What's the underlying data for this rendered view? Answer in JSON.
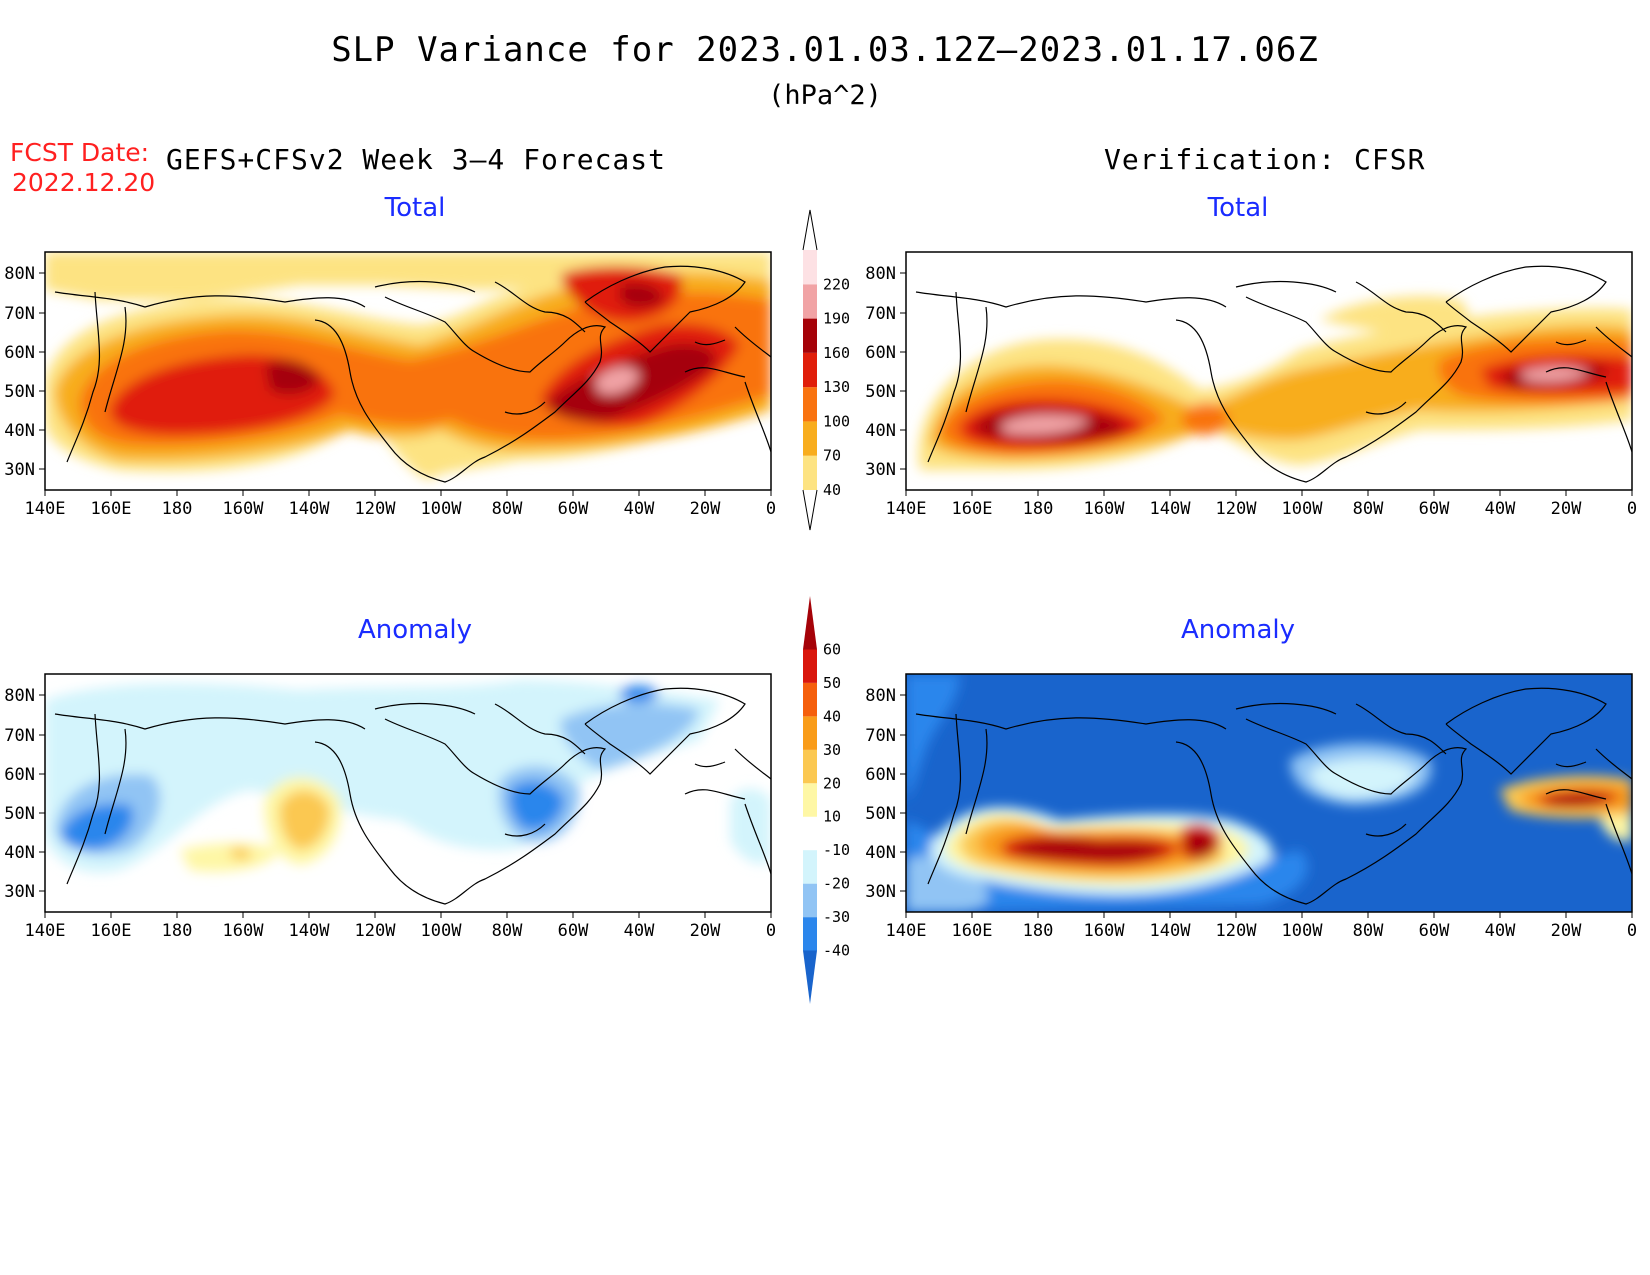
{
  "header": {
    "title": "SLP Variance for 2023.01.03.12Z–2023.01.17.06Z",
    "units": "(hPa^2)",
    "fcst_label": "FCST Date:",
    "fcst_date": "2022.12.20",
    "left_heading": "GEFS+CFSv2 Week 3–4 Forecast",
    "right_heading": "Verification: CFSR"
  },
  "panels": {
    "fc_total_title": "Total",
    "ob_total_title": "Total",
    "fc_anom_title": "Anomaly",
    "ob_anom_title": "Anomaly"
  },
  "axes": {
    "lat_labels": [
      "80N",
      "70N",
      "60N",
      "50N",
      "40N",
      "30N"
    ],
    "lon_labels": [
      "140E",
      "160E",
      "180",
      "160W",
      "140W",
      "120W",
      "100W",
      "80W",
      "60W",
      "40W",
      "20W",
      "0"
    ]
  },
  "colorbars": {
    "total": {
      "labels": [
        "40",
        "70",
        "100",
        "130",
        "160",
        "190",
        "220"
      ],
      "colors": [
        "#fde382",
        "#f8ad1e",
        "#f97310",
        "#e01e0a",
        "#a50208",
        "#f1a3a5",
        "#fde1e4"
      ]
    },
    "anomaly": {
      "labels": [
        "-40",
        "-30",
        "-20",
        "-10",
        "10",
        "20",
        "30",
        "40",
        "50",
        "60"
      ],
      "colors": [
        "#1964cc",
        "#2b86ec",
        "#91c4f4",
        "#d3f4fc",
        "#ffffff",
        "#fef7a5",
        "#fbc851",
        "#f99c1a",
        "#f55f0c",
        "#d9170c",
        "#a50208"
      ]
    }
  }
}
